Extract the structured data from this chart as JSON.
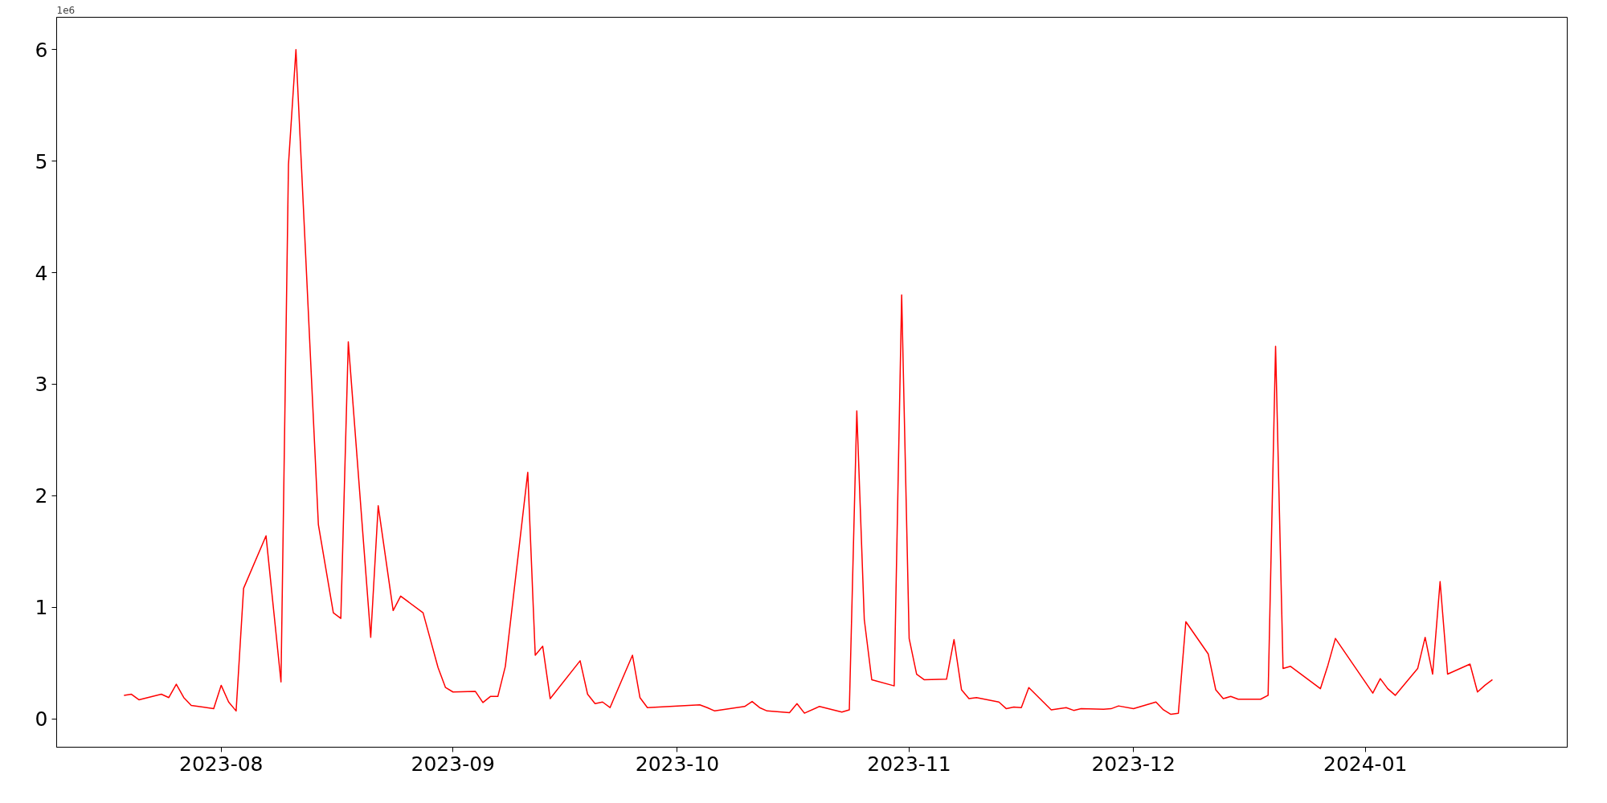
{
  "chart_data": {
    "type": "line",
    "x": [
      "2023-07-19",
      "2023-07-20",
      "2023-07-21",
      "2023-07-24",
      "2023-07-25",
      "2023-07-26",
      "2023-07-27",
      "2023-07-28",
      "2023-07-31",
      "2023-08-01",
      "2023-08-02",
      "2023-08-03",
      "2023-08-04",
      "2023-08-07",
      "2023-08-09",
      "2023-08-10",
      "2023-08-11",
      "2023-08-14",
      "2023-08-16",
      "2023-08-17",
      "2023-08-18",
      "2023-08-21",
      "2023-08-22",
      "2023-08-24",
      "2023-08-25",
      "2023-08-28",
      "2023-08-30",
      "2023-08-31",
      "2023-09-01",
      "2023-09-04",
      "2023-09-05",
      "2023-09-06",
      "2023-09-07",
      "2023-09-08",
      "2023-09-11",
      "2023-09-12",
      "2023-09-13",
      "2023-09-14",
      "2023-09-18",
      "2023-09-19",
      "2023-09-20",
      "2023-09-21",
      "2023-09-22",
      "2023-09-25",
      "2023-09-26",
      "2023-09-27",
      "2023-10-04",
      "2023-10-05",
      "2023-10-06",
      "2023-10-10",
      "2023-10-11",
      "2023-10-12",
      "2023-10-13",
      "2023-10-16",
      "2023-10-17",
      "2023-10-18",
      "2023-10-20",
      "2023-10-23",
      "2023-10-24",
      "2023-10-25",
      "2023-10-26",
      "2023-10-27",
      "2023-10-30",
      "2023-10-31",
      "2023-11-01",
      "2023-11-02",
      "2023-11-03",
      "2023-11-06",
      "2023-11-07",
      "2023-11-08",
      "2023-11-09",
      "2023-11-10",
      "2023-11-13",
      "2023-11-14",
      "2023-11-15",
      "2023-11-16",
      "2023-11-17",
      "2023-11-20",
      "2023-11-22",
      "2023-11-23",
      "2023-11-24",
      "2023-11-27",
      "2023-11-28",
      "2023-11-29",
      "2023-12-01",
      "2023-12-04",
      "2023-12-05",
      "2023-12-06",
      "2023-12-07",
      "2023-12-08",
      "2023-12-11",
      "2023-12-12",
      "2023-12-13",
      "2023-12-14",
      "2023-12-15",
      "2023-12-18",
      "2023-12-19",
      "2023-12-20",
      "2023-12-21",
      "2023-12-22",
      "2023-12-26",
      "2023-12-27",
      "2023-12-28",
      "2024-01-02",
      "2024-01-03",
      "2024-01-04",
      "2024-01-05",
      "2024-01-08",
      "2024-01-09",
      "2024-01-10",
      "2024-01-11",
      "2024-01-12",
      "2024-01-15",
      "2024-01-16",
      "2024-01-17",
      "2024-01-18"
    ],
    "series": [
      {
        "color": "#ff0000",
        "values": [
          0.21,
          0.22,
          0.17,
          0.22,
          0.19,
          0.31,
          0.19,
          0.12,
          0.09,
          0.3,
          0.15,
          0.07,
          1.17,
          1.64,
          0.33,
          4.97,
          6.0,
          1.74,
          0.95,
          0.9,
          3.38,
          0.73,
          1.91,
          0.97,
          1.1,
          0.95,
          0.46,
          0.28,
          0.24,
          0.245,
          0.145,
          0.2,
          0.2,
          0.47,
          2.21,
          0.57,
          0.65,
          0.18,
          0.52,
          0.22,
          0.135,
          0.15,
          0.1,
          0.57,
          0.19,
          0.1,
          0.125,
          0.1,
          0.07,
          0.11,
          0.155,
          0.1,
          0.07,
          0.055,
          0.135,
          0.05,
          0.11,
          0.06,
          0.08,
          2.76,
          0.89,
          0.35,
          0.295,
          3.8,
          0.72,
          0.4,
          0.35,
          0.355,
          0.71,
          0.26,
          0.18,
          0.19,
          0.15,
          0.09,
          0.105,
          0.1,
          0.28,
          0.08,
          0.1,
          0.075,
          0.09,
          0.085,
          0.09,
          0.115,
          0.09,
          0.15,
          0.08,
          0.04,
          0.05,
          0.87,
          0.58,
          0.26,
          0.18,
          0.2,
          0.175,
          0.175,
          0.21,
          3.34,
          0.45,
          0.47,
          0.27,
          0.48,
          0.72,
          0.23,
          0.36,
          0.27,
          0.21,
          0.45,
          0.73,
          0.4,
          1.23,
          0.4,
          0.49,
          0.24,
          0.3,
          0.35
        ]
      }
    ],
    "xlim": [
      "2023-07-10",
      "2024-01-28"
    ],
    "xticks": [
      {
        "value": "2023-08-01",
        "label": "2023-08"
      },
      {
        "value": "2023-09-01",
        "label": "2023-09"
      },
      {
        "value": "2023-10-01",
        "label": "2023-10"
      },
      {
        "value": "2023-11-01",
        "label": "2023-11"
      },
      {
        "value": "2023-12-01",
        "label": "2023-12"
      },
      {
        "value": "2024-01-01",
        "label": "2024-01"
      }
    ],
    "ylim": [
      -0.255,
      6.29
    ],
    "yticks": [
      0,
      1,
      2,
      3,
      4,
      5,
      6
    ],
    "annotations": [
      "1e6"
    ]
  }
}
